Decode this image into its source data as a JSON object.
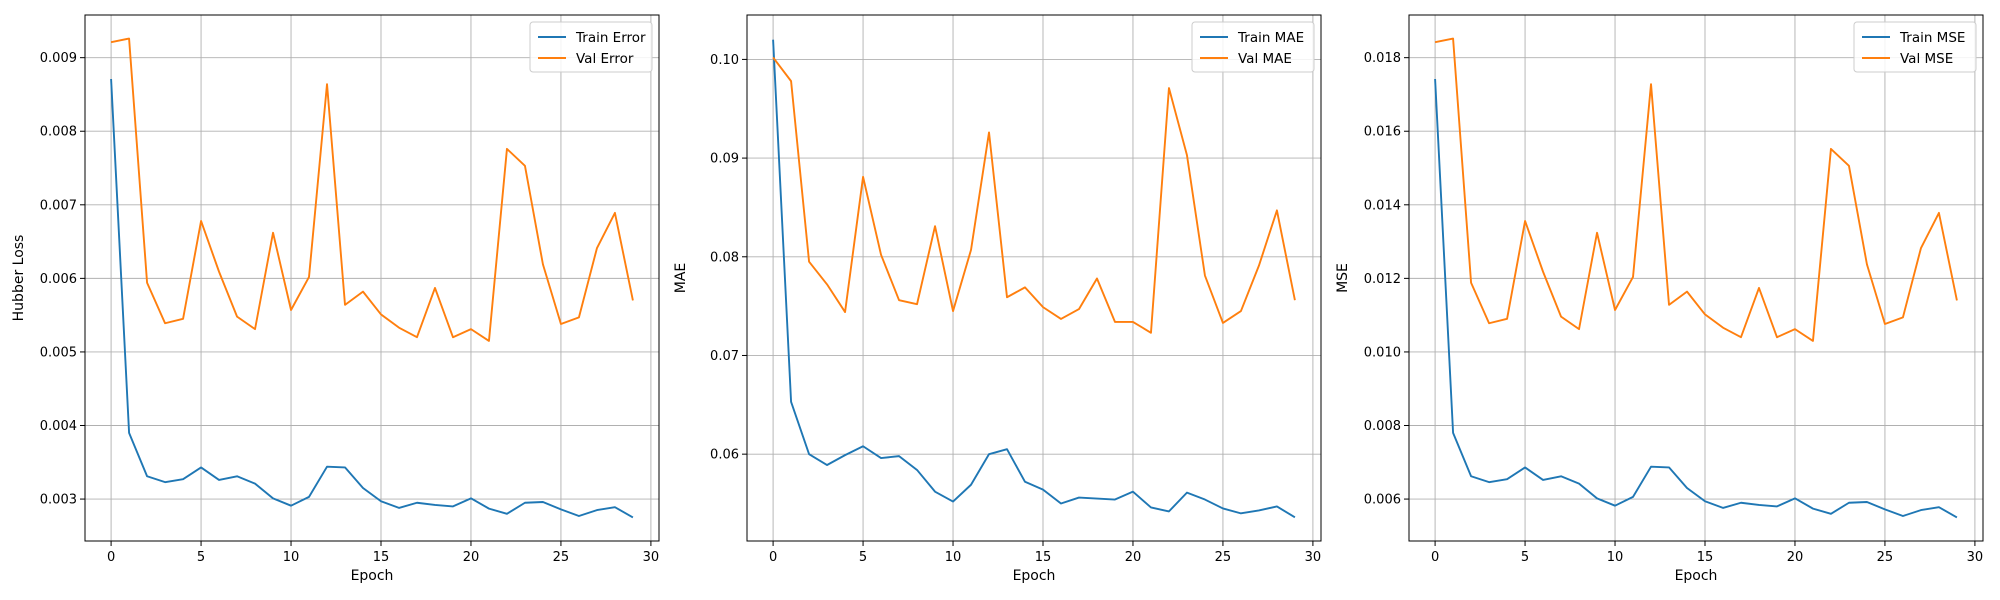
{
  "colors": {
    "train": "#1f77b4",
    "val": "#ff7f0e",
    "grid": "#b0b0b0",
    "axes": "#000000"
  },
  "chart_data": [
    {
      "type": "line",
      "xlabel": "Epoch",
      "ylabel": "Hubber Loss",
      "xlim": [
        -1.45,
        30.45
      ],
      "ylim": [
        0.00243,
        0.00958
      ],
      "xticks": [
        0,
        5,
        10,
        15,
        20,
        25,
        30
      ],
      "yticks": [
        0.003,
        0.004,
        0.005,
        0.006,
        0.007,
        0.008,
        0.009
      ],
      "ytick_labels": [
        "0.003",
        "0.004",
        "0.005",
        "0.006",
        "0.007",
        "0.008",
        "0.009"
      ],
      "grid": true,
      "legend": "upper right",
      "x": [
        0,
        1,
        2,
        3,
        4,
        5,
        6,
        7,
        8,
        9,
        10,
        11,
        12,
        13,
        14,
        15,
        16,
        17,
        18,
        19,
        20,
        21,
        22,
        23,
        24,
        25,
        26,
        27,
        28,
        29
      ],
      "series": [
        {
          "name": "Train Error",
          "color": "#1f77b4",
          "values": [
            0.00871,
            0.0039,
            0.00331,
            0.00323,
            0.00327,
            0.00343,
            0.00326,
            0.00331,
            0.00321,
            0.00301,
            0.00291,
            0.00303,
            0.00344,
            0.00343,
            0.00315,
            0.00297,
            0.00288,
            0.00295,
            0.00292,
            0.0029,
            0.00301,
            0.00287,
            0.0028,
            0.00295,
            0.00296,
            0.00286,
            0.00277,
            0.00285,
            0.00289,
            0.00275
          ]
        },
        {
          "name": "Val Error",
          "color": "#ff7f0e",
          "values": [
            0.00921,
            0.00926,
            0.00594,
            0.00539,
            0.00545,
            0.00678,
            0.00609,
            0.00548,
            0.00531,
            0.00662,
            0.00557,
            0.00602,
            0.00864,
            0.00564,
            0.00582,
            0.00551,
            0.00533,
            0.0052,
            0.00587,
            0.0052,
            0.00531,
            0.00515,
            0.00776,
            0.00753,
            0.00619,
            0.00538,
            0.00547,
            0.00641,
            0.00689,
            0.0057
          ]
        }
      ]
    },
    {
      "type": "line",
      "xlabel": "Epoch",
      "ylabel": "MAE",
      "xlim": [
        -1.45,
        30.45
      ],
      "ylim": [
        0.0512,
        0.1045
      ],
      "xticks": [
        0,
        5,
        10,
        15,
        20,
        25,
        30
      ],
      "yticks": [
        0.06,
        0.07,
        0.08,
        0.09,
        0.1
      ],
      "ytick_labels": [
        "0.06",
        "0.07",
        "0.08",
        "0.09",
        "0.10"
      ],
      "grid": true,
      "legend": "upper right",
      "x": [
        0,
        1,
        2,
        3,
        4,
        5,
        6,
        7,
        8,
        9,
        10,
        11,
        12,
        13,
        14,
        15,
        16,
        17,
        18,
        19,
        20,
        21,
        22,
        23,
        24,
        25,
        26,
        27,
        28,
        29
      ],
      "series": [
        {
          "name": "Train MAE",
          "color": "#1f77b4",
          "values": [
            0.102,
            0.0653,
            0.06,
            0.0589,
            0.0599,
            0.0608,
            0.0596,
            0.0598,
            0.0584,
            0.0562,
            0.0552,
            0.0569,
            0.06,
            0.0605,
            0.0572,
            0.0564,
            0.055,
            0.0556,
            0.0555,
            0.0554,
            0.0562,
            0.0546,
            0.0542,
            0.0561,
            0.0554,
            0.0545,
            0.054,
            0.0543,
            0.0547,
            0.0536
          ]
        },
        {
          "name": "Val MAE",
          "color": "#ff7f0e",
          "values": [
            0.1002,
            0.0978,
            0.0795,
            0.0772,
            0.0744,
            0.0881,
            0.0802,
            0.0756,
            0.0752,
            0.0831,
            0.0745,
            0.0807,
            0.0926,
            0.0759,
            0.0769,
            0.0749,
            0.0737,
            0.0747,
            0.0778,
            0.0734,
            0.0734,
            0.0723,
            0.0971,
            0.0903,
            0.0781,
            0.0733,
            0.0745,
            0.0791,
            0.0847,
            0.0756
          ]
        }
      ]
    },
    {
      "type": "line",
      "xlabel": "Epoch",
      "ylabel": "MSE",
      "xlim": [
        -1.45,
        30.45
      ],
      "ylim": [
        0.00486,
        0.01916
      ],
      "xticks": [
        0,
        5,
        10,
        15,
        20,
        25,
        30
      ],
      "yticks": [
        0.006,
        0.008,
        0.01,
        0.012,
        0.014,
        0.016,
        0.018
      ],
      "ytick_labels": [
        "0.006",
        "0.008",
        "0.010",
        "0.012",
        "0.014",
        "0.016",
        "0.018"
      ],
      "grid": true,
      "legend": "upper right",
      "x": [
        0,
        1,
        2,
        3,
        4,
        5,
        6,
        7,
        8,
        9,
        10,
        11,
        12,
        13,
        14,
        15,
        16,
        17,
        18,
        19,
        20,
        21,
        22,
        23,
        24,
        25,
        26,
        27,
        28,
        29
      ],
      "series": [
        {
          "name": "Train MSE",
          "color": "#1f77b4",
          "values": [
            0.01742,
            0.0078,
            0.00662,
            0.00646,
            0.00654,
            0.00686,
            0.00652,
            0.00662,
            0.00642,
            0.00602,
            0.00582,
            0.00606,
            0.00688,
            0.00686,
            0.0063,
            0.00594,
            0.00576,
            0.0059,
            0.00584,
            0.0058,
            0.00602,
            0.00574,
            0.0056,
            0.0059,
            0.00592,
            0.00572,
            0.00554,
            0.0057,
            0.00578,
            0.0055
          ]
        },
        {
          "name": "Val MSE",
          "color": "#ff7f0e",
          "values": [
            0.01842,
            0.01852,
            0.01188,
            0.01078,
            0.0109,
            0.01356,
            0.01218,
            0.01096,
            0.01062,
            0.01324,
            0.01114,
            0.01204,
            0.01728,
            0.01128,
            0.01164,
            0.01102,
            0.01066,
            0.0104,
            0.01174,
            0.0104,
            0.01062,
            0.0103,
            0.01552,
            0.01506,
            0.01238,
            0.01076,
            0.01094,
            0.01282,
            0.01378,
            0.0114
          ]
        }
      ]
    }
  ]
}
